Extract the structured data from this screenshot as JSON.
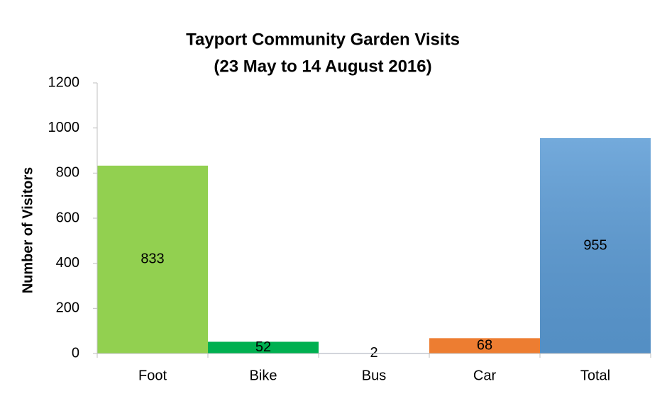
{
  "chart_data": {
    "type": "bar",
    "title": "Tayport Community Garden Visits",
    "subtitle": "(23 May to 14 August 2016)",
    "y_label": "Number of Visitors",
    "categories": [
      "Foot",
      "Bike",
      "Bus",
      "Car",
      "Total"
    ],
    "values": [
      833,
      52,
      2,
      68,
      955
    ],
    "colors": [
      "#92d050",
      "#00b050",
      "#4472c4",
      "#ed7d31",
      "#5b9bd5"
    ],
    "ylim": [
      0,
      1200
    ],
    "yticks": [
      0,
      200,
      400,
      600,
      800,
      1000,
      1200
    ],
    "grid": false
  }
}
